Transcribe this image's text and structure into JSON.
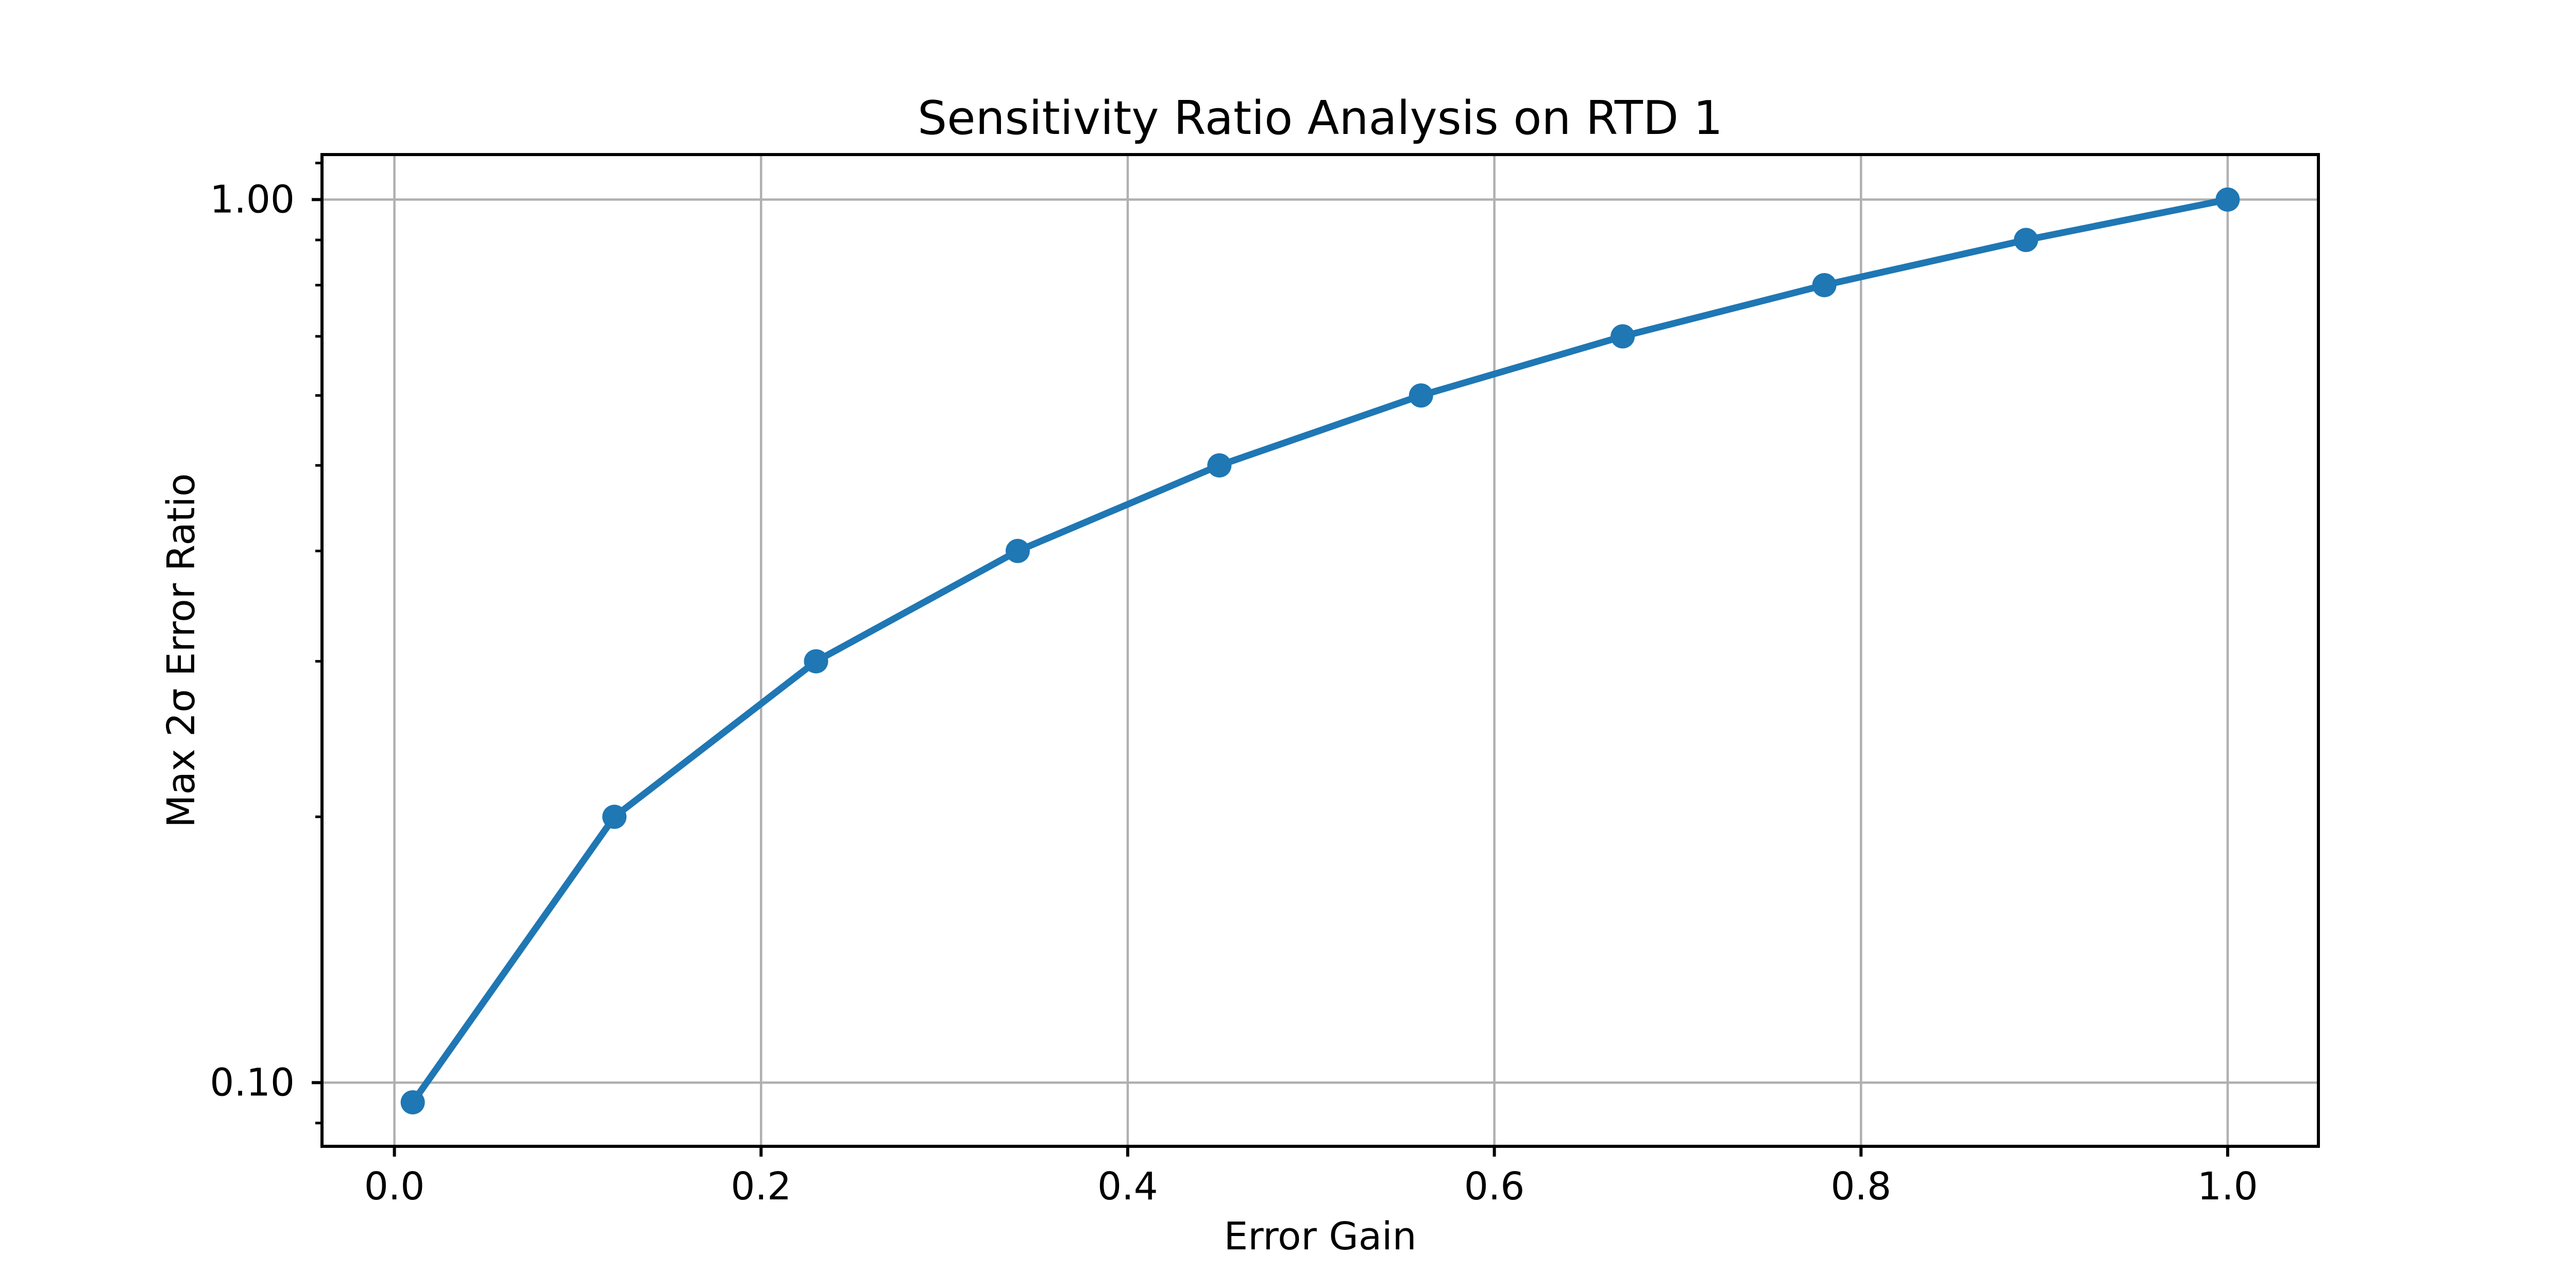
{
  "figure": {
    "background": "#ffffff"
  },
  "chart_data": {
    "type": "line",
    "title": "Sensitivity Ratio Analysis on RTD 1",
    "xlabel": "Error Gain",
    "ylabel": "Max 2σ Error Ratio",
    "xscale": "linear",
    "yscale": "log",
    "series": [
      {
        "name": "max-2sigma-error-ratio",
        "x": [
          0.01,
          0.12,
          0.23,
          0.34,
          0.45,
          0.56,
          0.67,
          0.78,
          0.89,
          1.0
        ],
        "y": [
          0.095,
          0.2,
          0.3,
          0.4,
          0.5,
          0.6,
          0.7,
          0.8,
          0.9,
          1.0
        ]
      }
    ],
    "xlim": [
      -0.0395,
      1.0495
    ],
    "ylim": [
      0.0847,
      1.1245
    ],
    "x_ticks": [
      0.0,
      0.2,
      0.4,
      0.6,
      0.8,
      1.0
    ],
    "x_tick_labels": [
      "0.0",
      "0.2",
      "0.4",
      "0.6",
      "0.8",
      "1.0"
    ],
    "y_ticks": [
      1.0,
      0.1
    ],
    "y_tick_labels": [
      "1.00",
      "0.10"
    ],
    "y_minor_ticks": [
      1.1,
      0.9,
      0.8,
      0.7,
      0.6,
      0.5,
      0.4,
      0.3,
      0.2,
      0.09
    ],
    "grid": "major",
    "legend": "none",
    "colors": {
      "line": "#1f77b4",
      "marker": "#1f77b4",
      "grid": "#b0b0b0",
      "axes": "#000000",
      "background": "#ffffff"
    }
  }
}
